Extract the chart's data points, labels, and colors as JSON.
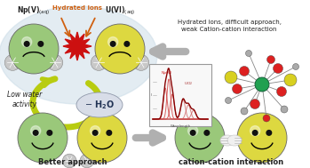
{
  "bg_color": "#ffffff",
  "label_np": "Np(V)",
  "label_u": "U(VI)",
  "label_hydrated_top": "Hydrated ions",
  "label_low_water": "Low water\nactivity",
  "label_minus_h2o": "- H$_2$O",
  "label_better_approach": "Better approach",
  "label_cation_cation": "cation-cation interaction",
  "label_right_top1": "Hydrated ions, difficult approach,",
  "label_right_top2": "weak Cation-cation interaction",
  "green_color": "#88b868",
  "yellow_color": "#d8d030",
  "light_green": "#9ac87a",
  "light_yellow": "#ddd840",
  "arrow_gray": "#b0b0b0",
  "arrow_green_fill": "#c8d820",
  "burst_red": "#cc1010",
  "text_dark": "#222222",
  "light_blue_bg": "#ccdde8",
  "water_gray": "#c8c8c8",
  "orange_arrow": "#d06010",
  "spec_box_bg": "#f8f8f8",
  "mol_green": "#20a050",
  "mol_red": "#dd2020",
  "mol_yellow": "#d8d020",
  "mol_gray": "#aaaaaa",
  "mol_white": "#e8e8e8"
}
